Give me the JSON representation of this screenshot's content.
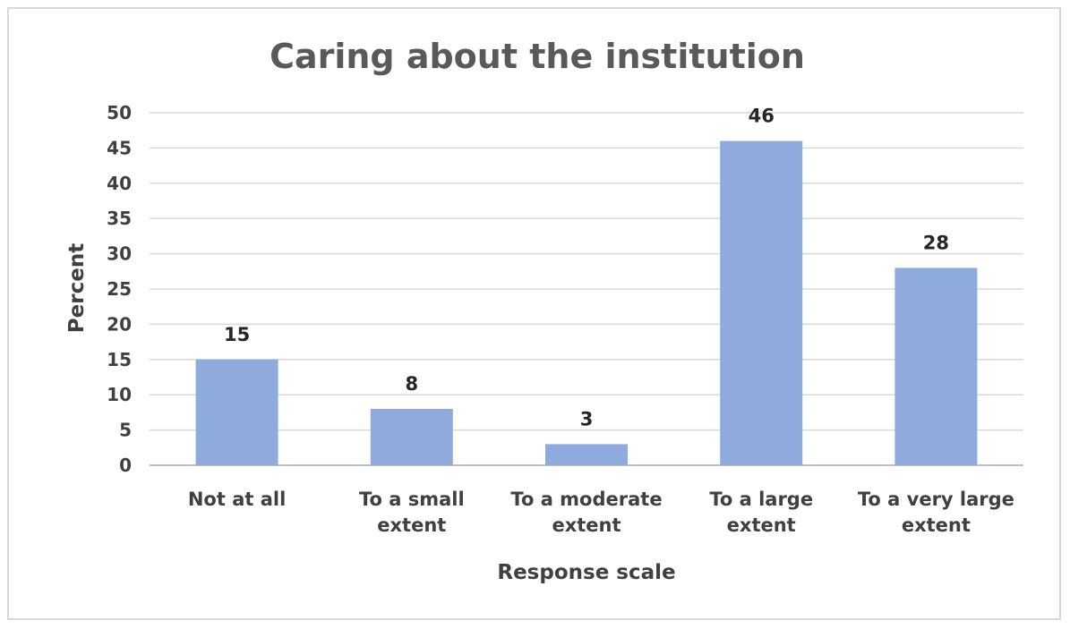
{
  "chart_data": {
    "type": "bar",
    "title": "Caring about the institution",
    "xlabel": "Response scale",
    "ylabel": "Percent",
    "categories": [
      [
        "Not at all"
      ],
      [
        "To a small",
        "extent"
      ],
      [
        "To a moderate",
        "extent"
      ],
      [
        "To a large",
        "extent"
      ],
      [
        "To a very large",
        "extent"
      ]
    ],
    "values": [
      15,
      8,
      3,
      46,
      28
    ],
    "data_labels": [
      "15",
      "8",
      "3",
      "46",
      "28"
    ],
    "ylim": [
      0,
      50
    ],
    "yticks": [
      "0",
      "5",
      "10",
      "15",
      "20",
      "25",
      "30",
      "35",
      "40",
      "45",
      "50"
    ],
    "grid": true,
    "legend": "none",
    "colors": {
      "bar": "#8faadc",
      "grid": "#d9d9d9",
      "axis": "#bfbfbf"
    }
  }
}
